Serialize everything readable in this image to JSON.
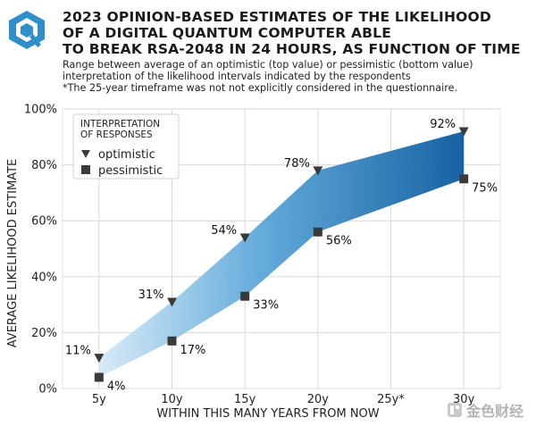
{
  "title": "2023 OPINION-BASED ESTIMATES OF THE LIKELIHOOD\nOF A DIGITAL QUANTUM COMPUTER ABLE\nTO BREAK RSA-2048 IN 24 HOURS, AS FUNCTION OF TIME",
  "subtitle": "Range between average of an optimistic (top value) or pessimistic (bottom value)\ninterpretation of the likelihood intervals indicated by the respondents\n*The 25-year timeframe was not not explicitly considered in the questionnaire.",
  "watermark": "金色财经",
  "colors": {
    "band_light": "#cfe6f5",
    "band_dark": "#0d5fa3",
    "marker": "#3a3a3a",
    "grid": "#d9d9d9",
    "logo": "#2f8fc9"
  },
  "chart_data": {
    "type": "area",
    "xlabel": "WITHIN THIS MANY YEARS FROM NOW",
    "ylabel": "AVERAGE LIKELIHOOD ESTIMATE",
    "categories": [
      "5y",
      "10y",
      "15y",
      "20y",
      "25y*",
      "30y"
    ],
    "ylim": [
      0,
      100
    ],
    "yticks": [
      "0%",
      "20%",
      "40%",
      "60%",
      "80%",
      "100%"
    ],
    "grid": true,
    "legend": {
      "title": "INTERPRETATION\nOF RESPONSES",
      "placement": "top-left",
      "items": [
        "optimistic",
        "pessimistic"
      ]
    },
    "series": [
      {
        "name": "optimistic",
        "x": [
          5,
          10,
          15,
          20,
          30
        ],
        "values": [
          11,
          31,
          54,
          78,
          92
        ],
        "labels": [
          "11%",
          "31%",
          "54%",
          "78%",
          "92%"
        ]
      },
      {
        "name": "pessimistic",
        "x": [
          5,
          10,
          15,
          20,
          30
        ],
        "values": [
          4,
          17,
          33,
          56,
          75
        ],
        "labels": [
          "4%",
          "17%",
          "33%",
          "56%",
          "75%"
        ]
      }
    ]
  }
}
